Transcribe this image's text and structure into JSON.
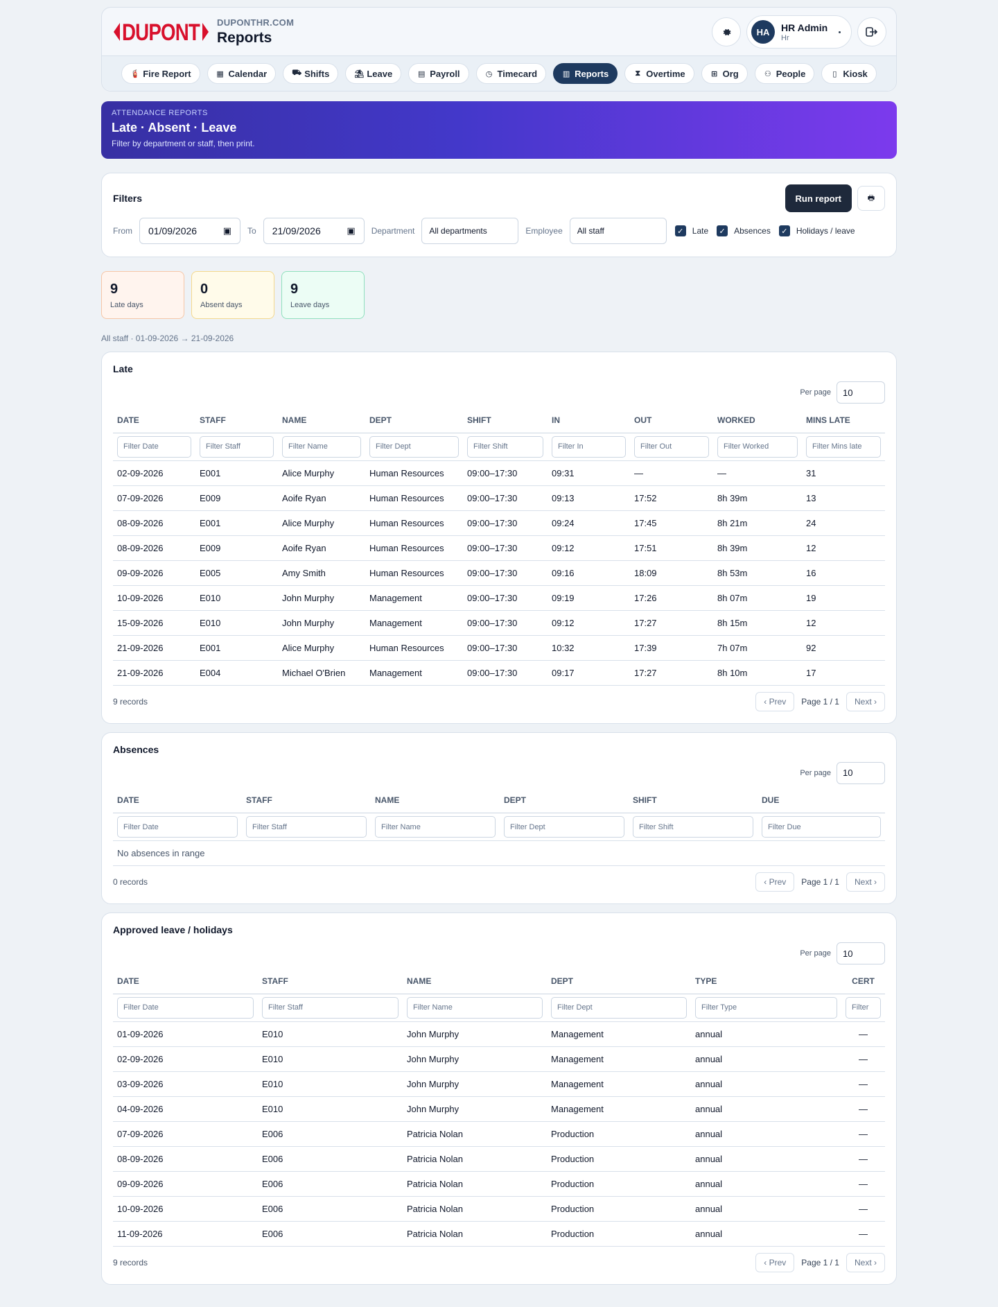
{
  "header": {
    "site": "DUPONTHR.COM",
    "page_title": "Reports",
    "user_initials": "HA",
    "user_name": "HR Admin",
    "user_role": "Hr",
    "logo_text": "DUPONT"
  },
  "nav": [
    {
      "label": "Fire Report",
      "icon": "fire-extinguisher-icon",
      "glyph": "🧯",
      "active": false
    },
    {
      "label": "Calendar",
      "icon": "calendar-icon",
      "glyph": "▦",
      "active": false
    },
    {
      "label": "Shifts",
      "icon": "shifts-icon",
      "glyph": "⛟",
      "active": false
    },
    {
      "label": "Leave",
      "icon": "umbrella-beach-icon",
      "glyph": "⛱",
      "active": false
    },
    {
      "label": "Payroll",
      "icon": "receipt-icon",
      "glyph": "▤",
      "active": false
    },
    {
      "label": "Timecard",
      "icon": "stopwatch-icon",
      "glyph": "◷",
      "active": false
    },
    {
      "label": "Reports",
      "icon": "chart-icon",
      "glyph": "▥",
      "active": true
    },
    {
      "label": "Overtime",
      "icon": "hourglass-icon",
      "glyph": "⧗",
      "active": false
    },
    {
      "label": "Org",
      "icon": "sitemap-icon",
      "glyph": "⊞",
      "active": false
    },
    {
      "label": "People",
      "icon": "people-icon",
      "glyph": "⚇",
      "active": false
    },
    {
      "label": "Kiosk",
      "icon": "tablet-icon",
      "glyph": "▯",
      "active": false
    }
  ],
  "banner": {
    "kicker": "ATTENDANCE REPORTS",
    "title": "Late · Absent · Leave",
    "subtitle": "Filter by department or staff, then print."
  },
  "filters": {
    "title": "Filters",
    "run_label": "Run report",
    "from_label": "From",
    "from_value": "01/09/2026",
    "to_label": "To",
    "to_value": "21/09/2026",
    "department_label": "Department",
    "department_value": "All departments",
    "employee_label": "Employee",
    "employee_value": "All staff",
    "check_late": "Late",
    "check_absences": "Absences",
    "check_holidays": "Holidays / leave"
  },
  "stats": {
    "late_num": "9",
    "late_label": "Late days",
    "absent_num": "0",
    "absent_label": "Absent days",
    "leave_num": "9",
    "leave_label": "Leave days"
  },
  "scope": "All staff · 01-09-2026 → 21-09-2026",
  "late": {
    "title": "Late",
    "per_page_label": "Per page",
    "per_page": "10",
    "columns": [
      "DATE",
      "STAFF",
      "NAME",
      "DEPT",
      "SHIFT",
      "IN",
      "OUT",
      "WORKED",
      "MINS LATE"
    ],
    "filters": [
      "Filter Date",
      "Filter Staff",
      "Filter Name",
      "Filter Dept",
      "Filter Shift",
      "Filter In",
      "Filter Out",
      "Filter Worked",
      "Filter Mins late"
    ],
    "rows": [
      [
        "02-09-2026",
        "E001",
        "Alice Murphy",
        "Human Resources",
        "09:00–17:30",
        "09:31",
        "—",
        "—",
        "31"
      ],
      [
        "07-09-2026",
        "E009",
        "Aoife Ryan",
        "Human Resources",
        "09:00–17:30",
        "09:13",
        "17:52",
        "8h 39m",
        "13"
      ],
      [
        "08-09-2026",
        "E001",
        "Alice Murphy",
        "Human Resources",
        "09:00–17:30",
        "09:24",
        "17:45",
        "8h 21m",
        "24"
      ],
      [
        "08-09-2026",
        "E009",
        "Aoife Ryan",
        "Human Resources",
        "09:00–17:30",
        "09:12",
        "17:51",
        "8h 39m",
        "12"
      ],
      [
        "09-09-2026",
        "E005",
        "Amy Smith",
        "Human Resources",
        "09:00–17:30",
        "09:16",
        "18:09",
        "8h 53m",
        "16"
      ],
      [
        "10-09-2026",
        "E010",
        "John Murphy",
        "Management",
        "09:00–17:30",
        "09:19",
        "17:26",
        "8h 07m",
        "19"
      ],
      [
        "15-09-2026",
        "E010",
        "John Murphy",
        "Management",
        "09:00–17:30",
        "09:12",
        "17:27",
        "8h 15m",
        "12"
      ],
      [
        "21-09-2026",
        "E001",
        "Alice Murphy",
        "Human Resources",
        "09:00–17:30",
        "10:32",
        "17:39",
        "7h 07m",
        "92"
      ],
      [
        "21-09-2026",
        "E004",
        "Michael O'Brien",
        "Management",
        "09:00–17:30",
        "09:17",
        "17:27",
        "8h 10m",
        "17"
      ]
    ],
    "records": "9 records",
    "prev": "‹ Prev",
    "page": "Page 1 / 1",
    "next": "Next ›"
  },
  "absences": {
    "title": "Absences",
    "per_page_label": "Per page",
    "per_page": "10",
    "columns": [
      "DATE",
      "STAFF",
      "NAME",
      "DEPT",
      "SHIFT",
      "DUE"
    ],
    "filters": [
      "Filter Date",
      "Filter Staff",
      "Filter Name",
      "Filter Dept",
      "Filter Shift",
      "Filter Due"
    ],
    "empty": "No absences in range",
    "records": "0 records",
    "prev": "‹ Prev",
    "page": "Page 1 / 1",
    "next": "Next ›"
  },
  "leave": {
    "title": "Approved leave / holidays",
    "per_page_label": "Per page",
    "per_page": "10",
    "columns": [
      "DATE",
      "STAFF",
      "NAME",
      "DEPT",
      "TYPE",
      "CERT"
    ],
    "filters": [
      "Filter Date",
      "Filter Staff",
      "Filter Name",
      "Filter Dept",
      "Filter Type",
      "Filter"
    ],
    "rows": [
      [
        "01-09-2026",
        "E010",
        "John Murphy",
        "Management",
        "annual",
        "—"
      ],
      [
        "02-09-2026",
        "E010",
        "John Murphy",
        "Management",
        "annual",
        "—"
      ],
      [
        "03-09-2026",
        "E010",
        "John Murphy",
        "Management",
        "annual",
        "—"
      ],
      [
        "04-09-2026",
        "E010",
        "John Murphy",
        "Management",
        "annual",
        "—"
      ],
      [
        "07-09-2026",
        "E006",
        "Patricia Nolan",
        "Production",
        "annual",
        "—"
      ],
      [
        "08-09-2026",
        "E006",
        "Patricia Nolan",
        "Production",
        "annual",
        "—"
      ],
      [
        "09-09-2026",
        "E006",
        "Patricia Nolan",
        "Production",
        "annual",
        "—"
      ],
      [
        "10-09-2026",
        "E006",
        "Patricia Nolan",
        "Production",
        "annual",
        "—"
      ],
      [
        "11-09-2026",
        "E006",
        "Patricia Nolan",
        "Production",
        "annual",
        "—"
      ]
    ],
    "records": "9 records",
    "prev": "‹ Prev",
    "page": "Page 1 / 1",
    "next": "Next ›"
  },
  "colors": {
    "brand_red": "#d8102c",
    "navy": "#1e3a5f",
    "banner_start": "#3730a3",
    "banner_end": "#7c3aed"
  }
}
